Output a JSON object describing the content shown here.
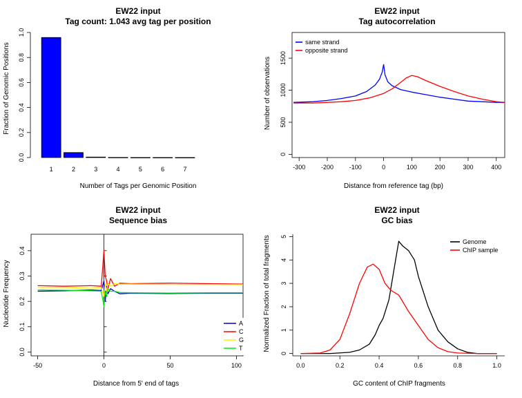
{
  "chart_data": [
    {
      "type": "bar",
      "title": "EW22 input",
      "subtitle": "Tag count:  1.043  avg tag per position",
      "xlabel": "Number of Tags per Genomic Position",
      "ylabel": "Fraction of Genomic Positions",
      "categories": [
        "1",
        "2",
        "3",
        "4",
        "5",
        "6",
        "7"
      ],
      "values": [
        0.96,
        0.04,
        0.004,
        0.001,
        0.0005,
        0.0003,
        0.0002
      ],
      "yticks": [
        "0.0",
        "0.2",
        "0.4",
        "0.6",
        "0.8",
        "1.0"
      ],
      "ylim": [
        0,
        1.0
      ],
      "bar_color": "#0000ff"
    },
    {
      "type": "line",
      "title": "EW22 input",
      "subtitle": "Tag autocorrelation",
      "xlabel": "Distance from reference tag (bp)",
      "ylabel": "Number of observations",
      "xticks": [
        -300,
        -200,
        -100,
        0,
        100,
        200,
        300,
        400
      ],
      "yticks": [
        0,
        500,
        1000,
        1500
      ],
      "xlim": [
        -325,
        430
      ],
      "ylim": [
        -50,
        1900
      ],
      "legend_position": "top-left",
      "series": [
        {
          "name": "same strand",
          "color": "#0000ff",
          "x": [
            -320,
            -250,
            -200,
            -150,
            -100,
            -60,
            -30,
            -15,
            -5,
            0,
            5,
            15,
            30,
            60,
            100,
            150,
            200,
            250,
            300,
            350,
            400,
            430
          ],
          "y": [
            810,
            820,
            840,
            870,
            910,
            980,
            1080,
            1170,
            1280,
            1400,
            1240,
            1130,
            1070,
            1010,
            970,
            930,
            890,
            860,
            830,
            820,
            810,
            810
          ]
        },
        {
          "name": "opposite strand",
          "color": "#ff0000",
          "x": [
            -320,
            -250,
            -200,
            -150,
            -100,
            -50,
            0,
            30,
            60,
            80,
            100,
            120,
            150,
            200,
            250,
            300,
            350,
            400,
            430
          ],
          "y": [
            800,
            800,
            810,
            820,
            840,
            880,
            950,
            1020,
            1120,
            1190,
            1230,
            1210,
            1150,
            1060,
            980,
            910,
            860,
            820,
            810
          ]
        }
      ]
    },
    {
      "type": "line",
      "title": "EW22 input",
      "subtitle": "Sequence bias",
      "xlabel": "Distance from 5' end of tags",
      "ylabel": "Nucleotide Frequency",
      "xticks": [
        -50,
        0,
        50,
        100
      ],
      "yticks": [
        "0.0",
        "0.1",
        "0.2",
        "0.3",
        "0.4"
      ],
      "xlim": [
        -55,
        105
      ],
      "ylim": [
        -0.015,
        0.465
      ],
      "legend_position": "bottom-right",
      "series": [
        {
          "name": "A",
          "color": "#0000cc",
          "x": [
            -50,
            -30,
            -10,
            -2,
            0,
            1,
            2,
            3,
            5,
            8,
            12,
            20,
            50,
            80,
            105
          ],
          "y": [
            0.24,
            0.242,
            0.245,
            0.243,
            0.28,
            0.2,
            0.26,
            0.23,
            0.25,
            0.24,
            0.23,
            0.232,
            0.231,
            0.232,
            0.232
          ]
        },
        {
          "name": "C",
          "color": "#ff0000",
          "x": [
            -50,
            -30,
            -10,
            -2,
            0,
            1,
            2,
            3,
            5,
            8,
            12,
            20,
            50,
            80,
            105
          ],
          "y": [
            0.262,
            0.26,
            0.262,
            0.26,
            0.4,
            0.3,
            0.28,
            0.25,
            0.29,
            0.26,
            0.272,
            0.27,
            0.272,
            0.27,
            0.268
          ]
        },
        {
          "name": "G",
          "color": "#ffee00",
          "x": [
            -50,
            -30,
            -10,
            -2,
            0,
            1,
            2,
            3,
            5,
            8,
            12,
            20,
            50,
            80,
            105
          ],
          "y": [
            0.255,
            0.255,
            0.252,
            0.255,
            0.22,
            0.27,
            0.24,
            0.27,
            0.26,
            0.27,
            0.268,
            0.268,
            0.267,
            0.267,
            0.266
          ]
        },
        {
          "name": "T",
          "color": "#00ee00",
          "x": [
            -50,
            -30,
            -10,
            -2,
            0,
            1,
            2,
            3,
            5,
            8,
            12,
            20,
            50,
            80,
            105
          ],
          "y": [
            0.245,
            0.244,
            0.242,
            0.24,
            0.18,
            0.24,
            0.22,
            0.25,
            0.24,
            0.24,
            0.235,
            0.234,
            0.233,
            0.234,
            0.234
          ]
        }
      ]
    },
    {
      "type": "line",
      "title": "EW22 input",
      "subtitle": "GC bias",
      "xlabel": "GC content of ChIP fragments",
      "ylabel": "Normalized Fraction of total fragments",
      "xticks": [
        "0.0",
        "0.2",
        "0.4",
        "0.6",
        "0.8",
        "1.0"
      ],
      "yticks": [
        0,
        1,
        2,
        3,
        4,
        5
      ],
      "xlim": [
        -0.04,
        1.04
      ],
      "ylim": [
        -0.1,
        5.1
      ],
      "legend_position": "top-right",
      "series": [
        {
          "name": "Genome",
          "color": "#000000",
          "x": [
            0.0,
            0.15,
            0.25,
            0.3,
            0.35,
            0.38,
            0.4,
            0.42,
            0.45,
            0.48,
            0.5,
            0.52,
            0.55,
            0.58,
            0.6,
            0.65,
            0.7,
            0.75,
            0.8,
            0.85,
            0.9,
            1.0
          ],
          "y": [
            0,
            0,
            0.05,
            0.15,
            0.4,
            0.8,
            1.2,
            1.5,
            2.3,
            3.8,
            4.8,
            4.6,
            4.4,
            4.0,
            3.3,
            2.0,
            1.0,
            0.5,
            0.2,
            0.05,
            0,
            0
          ]
        },
        {
          "name": "ChIP sample",
          "color": "#ff0000",
          "x": [
            0.0,
            0.1,
            0.15,
            0.2,
            0.25,
            0.3,
            0.34,
            0.37,
            0.4,
            0.43,
            0.46,
            0.5,
            0.55,
            0.6,
            0.65,
            0.7,
            0.75,
            0.8,
            0.9,
            1.0
          ],
          "y": [
            0,
            0.02,
            0.15,
            0.6,
            1.7,
            3.0,
            3.7,
            3.82,
            3.6,
            3.0,
            2.7,
            2.5,
            1.8,
            1.2,
            0.6,
            0.25,
            0.08,
            0.02,
            0,
            0
          ]
        }
      ]
    }
  ]
}
